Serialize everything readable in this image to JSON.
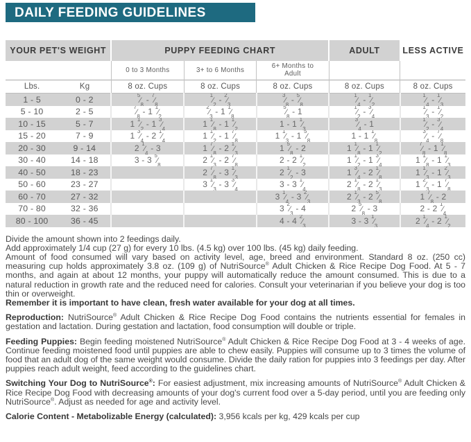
{
  "title": "DAILY FEEDING GUIDELINES",
  "colors": {
    "header_teal": "#1e6a80",
    "stripe_gray": "#d2d2d2"
  },
  "table": {
    "group_headers": {
      "weight": "YOUR PET'S WEIGHT",
      "puppy": "PUPPY FEEDING CHART",
      "adult": "ADULT",
      "less_active": "LESS ACTIVE"
    },
    "age_headers": [
      "0 to 3 Months",
      "3+ to 6 Months",
      "6+ Months to Adult"
    ],
    "unit_headers": {
      "lbs": "Lbs.",
      "kg": "Kg",
      "cups": "8 oz. Cups"
    },
    "rows": [
      {
        "lbs": "1 - 5",
        "kg": "0 - 2",
        "p1": "5/8 - 7/8",
        "p2": "1/2 - 2/3",
        "p3": "3/8 - 5/8",
        "adult": "1/4 - 1/2",
        "less": "1/4 - 1/3"
      },
      {
        "lbs": "5 - 10",
        "kg": "2 - 5",
        "p1": "7/8 - 1 1/2",
        "p2": "2/3 - 1 1/8",
        "p3": "5/8 - 1",
        "adult": "1/2 - 3/4",
        "less": "1/3 - 1/2"
      },
      {
        "lbs": "10 - 15",
        "kg": "5 - 7",
        "p1": "1 1/2 - 1 3/4",
        "p2": "1 1/8 - 1 1/2",
        "p3": "1 - 1 1/3",
        "adult": "3/4 - 1",
        "less": "1/2 - 3/4"
      },
      {
        "lbs": "15 - 20",
        "kg": "7 - 9",
        "p1": "1 3/4 - 2 1/4",
        "p2": "1 1/2 - 1 7/8",
        "p3": "1 1/3 - 1 5/8",
        "adult": "1 - 1 1/8",
        "less": "3/4 - 7/8"
      },
      {
        "lbs": "20 - 30",
        "kg": "9 - 14",
        "p1": "2 1/4 - 3",
        "p2": "1 7/8 - 2 1/3",
        "p3": "1 5/8 - 2",
        "adult": "1 1/8 - 1 1/2",
        "less": "7/8 - 1 1/8"
      },
      {
        "lbs": "30 - 40",
        "kg": "14 - 18",
        "p1": "3 - 3 5/8",
        "p2": "2 1/3 - 2 7/8",
        "p3": "2 - 2 1/2",
        "adult": "1 1/2 - 1 3/4",
        "less": "1 1/8 - 1 1/3"
      },
      {
        "lbs": "40 - 50",
        "kg": "18 - 23",
        "p1": "",
        "p2": "2 7/8 - 3 1/3",
        "p3": "2 1/2 - 3",
        "adult": "1 3/4 - 2 1/8",
        "less": "1 1/3 - 1 2/3"
      },
      {
        "lbs": "50 - 60",
        "kg": "23 - 27",
        "p1": "",
        "p2": "3 1/3 - 3 3/4",
        "p3": "3 - 3 1/4",
        "adult": "2 1/8 - 2 1/3",
        "less": "1 2/3 - 1 7/8"
      },
      {
        "lbs": "60 - 70",
        "kg": "27 - 32",
        "p1": "",
        "p2": "",
        "p3": "3 1/4 - 3 2/3",
        "adult": "2 1/3 - 2 5/8",
        "less": "1 7/8 - 2"
      },
      {
        "lbs": "70 - 80",
        "kg": "32 - 36",
        "p1": "",
        "p2": "",
        "p3": "3 2/3 - 4",
        "adult": "2 5/8 - 3",
        "less": "2 - 2 1/4"
      },
      {
        "lbs": "80 - 100",
        "kg": "36 - 45",
        "p1": "",
        "p2": "",
        "p3": "4 - 4 2/3",
        "adult": "3 - 3 1/3",
        "less": "2 1/4 - 2 1/2"
      }
    ]
  },
  "notes": {
    "line1": "Divide the amount shown into 2 feedings daily.",
    "line2": "Add approximately 1/4 cup (27 g) for every 10 lbs. (4.5 kg) over 100 lbs. (45 kg) daily feeding.",
    "para": "Amount of food consumed will vary based on activity level, age, breed and environment. Standard 8 oz. (250 cc) measuring cup holds approximately 3.8 oz. (109 g) of NutriSource® Adult Chicken & Rice Recipe Dog Food. At 5 - 7 months, and again at about 12 months, your puppy will automatically reduce the amount consumed. This is due to a natural reduction in growth rate and the reduced need for calories. Consult your veterinarian if you believe your dog is too thin or overweight.",
    "remember": "Remember it is important to have clean, fresh water available for your dog at all times.",
    "reproduction": {
      "lead": "Reproduction:",
      "text": "NutriSource® Adult Chicken & Rice Recipe Dog Food contains the nutrients essential for females in gestation and lactation. During gestation and lactation, food consumption will double or triple."
    },
    "feeding_puppies": {
      "lead": "Feeding Puppies:",
      "text": "Begin feeding moistened NutriSource® Adult Chicken & Rice Recipe Dog Food at 3 - 4 weeks of age. Continue feeding moistened food until puppies are able to chew easily. Puppies will consume up to 3 times the volume of food that an adult dog of the same weight would consume. Divide the daily ration for puppies into 3 feedings per day. After puppies reach adult weight, feed according to the guidelines chart."
    },
    "switching": {
      "lead": "Switching Your Dog to NutriSource®:",
      "text": "For easiest adjustment, mix increasing amounts of NutriSource® Adult Chicken & Rice Recipe Dog Food with decreasing amounts of your dog's current food over a 5-day period, until you are feeding only NutriSource®. Adjust as needed for age and activity level."
    },
    "calorie": {
      "lead": "Calorie Content - Metabolizable Energy (calculated):",
      "text": "3,956 kcals per kg, 429 kcals per cup"
    }
  }
}
